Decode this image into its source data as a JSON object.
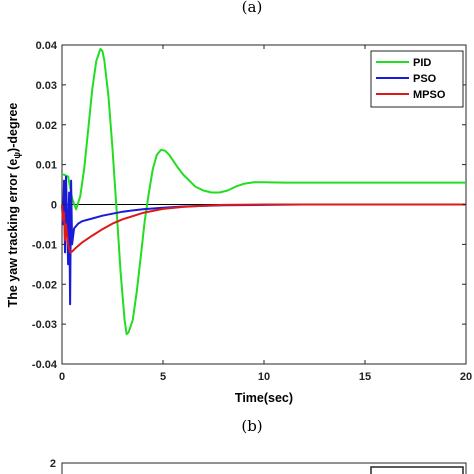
{
  "chart_data": [
    {
      "type": "line",
      "caption_above": "(a)",
      "caption": "(b)",
      "xlabel": "Time(sec)",
      "ylabel_main": "The yaw tracking error (e",
      "ylabel_sub": "ψ",
      "ylabel_end": ")-degree",
      "xlim": [
        0,
        20
      ],
      "ylim": [
        -0.04,
        0.04
      ],
      "xticks": [
        0,
        5,
        10,
        15,
        20
      ],
      "xtick_labels": [
        "0",
        "5",
        "10",
        "15",
        "20"
      ],
      "yticks": [
        0.04,
        0.03,
        0.02,
        0.01,
        0,
        -0.01,
        -0.02,
        -0.03,
        -0.04
      ],
      "ytick_labels": [
        "0.04",
        "0.03",
        "0.02",
        "0.01",
        "0",
        "-0.01",
        "-0.02",
        "-0.03",
        "-0.04"
      ],
      "legend_position": "top-right",
      "series": [
        {
          "name": "PID",
          "color": "#22dd22",
          "x": [
            0,
            0.1,
            0.3,
            0.5,
            0.7,
            0.9,
            1.1,
            1.3,
            1.5,
            1.7,
            1.9,
            2.0,
            2.1,
            2.3,
            2.5,
            2.7,
            2.9,
            3.1,
            3.2,
            3.3,
            3.5,
            3.7,
            3.9,
            4.1,
            4.3,
            4.5,
            4.7,
            4.9,
            5.1,
            5.3,
            5.5,
            5.7,
            6.0,
            6.3,
            6.6,
            7.0,
            7.4,
            7.8,
            8.2,
            8.6,
            9.0,
            9.5,
            10,
            11,
            12,
            14,
            16,
            18,
            20
          ],
          "y": [
            0.0075,
            0.0075,
            0.007,
            0.0015,
            -0.0012,
            0.002,
            0.009,
            0.019,
            0.029,
            0.036,
            0.039,
            0.0385,
            0.036,
            0.027,
            0.014,
            -0.001,
            -0.017,
            -0.029,
            -0.0325,
            -0.032,
            -0.029,
            -0.022,
            -0.013,
            -0.004,
            0.003,
            0.009,
            0.0125,
            0.0137,
            0.0135,
            0.0125,
            0.011,
            0.0095,
            0.0075,
            0.006,
            0.0045,
            0.0035,
            0.003,
            0.003,
            0.0035,
            0.0045,
            0.0052,
            0.0056,
            0.0056,
            0.0055,
            0.0055,
            0.0055,
            0.0055,
            0.0055,
            0.0055
          ]
        },
        {
          "name": "PSO",
          "color": "#1a1adb",
          "x": [
            0,
            0.05,
            0.1,
            0.15,
            0.2,
            0.25,
            0.3,
            0.35,
            0.4,
            0.45,
            0.5,
            0.6,
            0.8,
            1.0,
            1.5,
            2.0,
            3.0,
            4.0,
            5.0,
            6.0,
            8.0,
            10,
            12,
            14,
            16,
            18,
            20
          ],
          "y": [
            0.0,
            -0.005,
            0.006,
            -0.012,
            0.007,
            -0.003,
            -0.015,
            0.003,
            -0.025,
            0.006,
            -0.01,
            -0.006,
            -0.0048,
            -0.0042,
            -0.0035,
            -0.0028,
            -0.0018,
            -0.0012,
            -0.0008,
            -0.0005,
            -0.0002,
            -0.0001,
            0.0,
            0.0,
            0.0,
            0.0,
            0.0
          ]
        },
        {
          "name": "MPSO",
          "color": "#dd1a1a",
          "x": [
            0,
            0.05,
            0.1,
            0.15,
            0.2,
            0.3,
            0.4,
            0.5,
            0.7,
            1.0,
            1.5,
            2.0,
            2.5,
            3.0,
            4.0,
            5.0,
            6.0,
            7.0,
            8.0,
            10,
            12,
            14,
            16,
            18,
            20
          ],
          "y": [
            0.0,
            -0.004,
            -0.002,
            -0.009,
            -0.005,
            -0.01,
            -0.012,
            -0.0118,
            -0.0108,
            -0.0095,
            -0.0078,
            -0.0062,
            -0.0048,
            -0.0037,
            -0.0021,
            -0.0011,
            -0.0006,
            -0.0003,
            -0.0001,
            0.0,
            0.0,
            0.0,
            0.0,
            0.0,
            0.0
          ]
        }
      ]
    },
    {
      "type": "line",
      "partial": true,
      "yticks": [
        2
      ],
      "ytick_labels": [
        "2"
      ]
    }
  ]
}
